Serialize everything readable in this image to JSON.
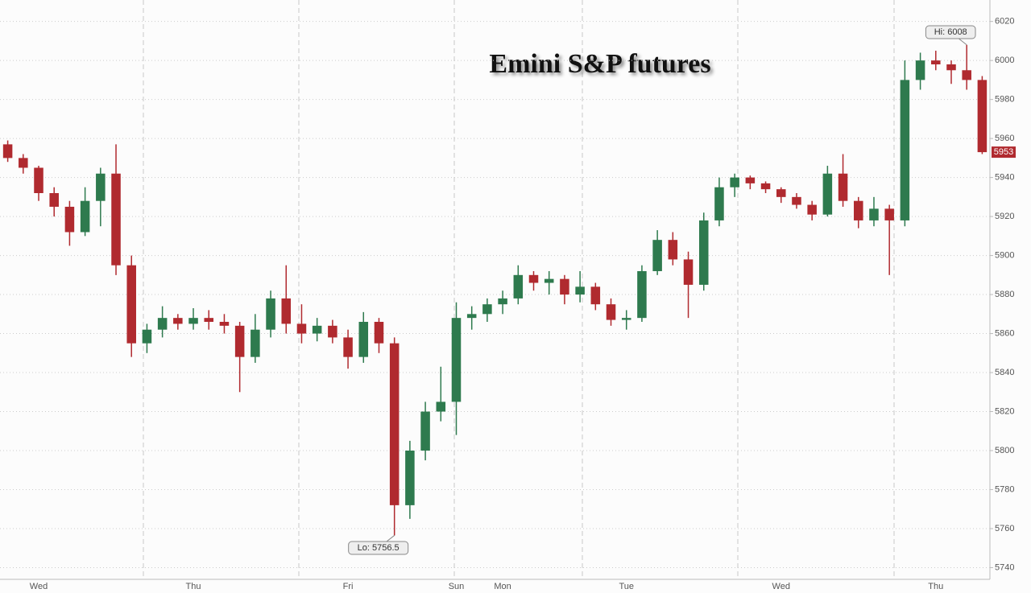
{
  "chart_data": {
    "type": "candlestick",
    "title": "Emini S&P futures",
    "categories": [
      null,
      null,
      "Wed",
      null,
      null,
      null,
      null,
      null,
      null,
      null,
      null,
      null,
      "Thu",
      null,
      null,
      null,
      null,
      null,
      null,
      null,
      null,
      null,
      "Fri",
      null,
      null,
      null,
      null,
      null,
      null,
      "Sun",
      null,
      null,
      "Mon",
      null,
      null,
      null,
      null,
      null,
      null,
      null,
      "Tue",
      null,
      null,
      null,
      null,
      null,
      null,
      null,
      null,
      null,
      "Wed",
      null,
      null,
      null,
      null,
      null,
      null,
      null,
      null,
      null,
      "Thu",
      null,
      null,
      null
    ],
    "open": [
      5957,
      5950,
      5945,
      5932,
      5925,
      5912,
      5928,
      5942,
      5895,
      5855,
      5862,
      5868,
      5865,
      5868,
      5866,
      5864,
      5848,
      5862,
      5878,
      5865,
      5860,
      5864,
      5858,
      5848,
      5866,
      5855,
      5772,
      5800,
      5820,
      5825,
      5868,
      5870,
      5875,
      5878,
      5890,
      5886,
      5888,
      5880,
      5884,
      5875,
      5867,
      5868,
      5892,
      5908,
      5898,
      5885,
      5918,
      5935,
      5940,
      5937,
      5934,
      5930,
      5926,
      5921,
      5942,
      5928,
      5918,
      5924,
      5918,
      5990,
      6000,
      5998,
      5995,
      5990
    ],
    "high": [
      5959,
      5952,
      5946,
      5935,
      5928,
      5935,
      5945,
      5957,
      5900,
      5865,
      5874,
      5870,
      5873,
      5872,
      5870,
      5866,
      5870,
      5882,
      5895,
      5875,
      5868,
      5867,
      5862,
      5871,
      5868,
      5858,
      5805,
      5825,
      5843,
      5876,
      5874,
      5878,
      5882,
      5895,
      5892,
      5892,
      5890,
      5892,
      5886,
      5878,
      5872,
      5895,
      5913,
      5912,
      5902,
      5922,
      5940,
      5942,
      5941,
      5938,
      5935,
      5932,
      5928,
      5946,
      5952,
      5930,
      5930,
      5926,
      6000,
      6004,
      6005,
      6000,
      6008,
      5992
    ],
    "low": [
      5948,
      5942,
      5928,
      5920,
      5905,
      5910,
      5915,
      5890,
      5848,
      5850,
      5858,
      5862,
      5862,
      5862,
      5860,
      5830,
      5845,
      5858,
      5860,
      5855,
      5856,
      5855,
      5842,
      5845,
      5850,
      5756.5,
      5765,
      5795,
      5815,
      5808,
      5862,
      5866,
      5870,
      5875,
      5882,
      5880,
      5875,
      5876,
      5872,
      5864,
      5862,
      5866,
      5890,
      5895,
      5868,
      5882,
      5915,
      5930,
      5934,
      5932,
      5927,
      5924,
      5918,
      5920,
      5925,
      5914,
      5915,
      5890,
      5915,
      5985,
      5995,
      5988,
      5985,
      5952
    ],
    "close": [
      5950,
      5945,
      5932,
      5925,
      5912,
      5928,
      5942,
      5895,
      5855,
      5862,
      5868,
      5865,
      5868,
      5866,
      5864,
      5848,
      5862,
      5878,
      5865,
      5860,
      5864,
      5858,
      5848,
      5866,
      5855,
      5772,
      5800,
      5820,
      5825,
      5868,
      5870,
      5875,
      5878,
      5890,
      5886,
      5888,
      5880,
      5884,
      5875,
      5867,
      5868,
      5892,
      5908,
      5898,
      5885,
      5918,
      5935,
      5940,
      5937,
      5934,
      5930,
      5926,
      5921,
      5942,
      5928,
      5918,
      5924,
      5918,
      5990,
      6000,
      5998,
      5995,
      5990,
      5953
    ],
    "up_color": "#2e7a4e",
    "down_color": "#b02a2f",
    "ylim": [
      5734,
      6031
    ],
    "yticks": [
      5740,
      5760,
      5780,
      5800,
      5820,
      5840,
      5860,
      5880,
      5900,
      5920,
      5940,
      5960,
      5980,
      6000,
      6020
    ],
    "grid": true,
    "high_annotation": {
      "value": 6008,
      "label": "Hi: 6008"
    },
    "low_annotation": {
      "value": 5756.5,
      "label": "Lo: 5756.5"
    },
    "last_price": 5953
  }
}
